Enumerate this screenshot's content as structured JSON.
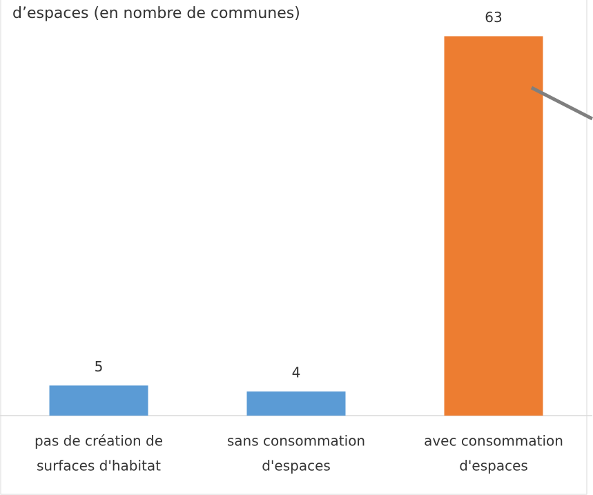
{
  "chart_data": {
    "type": "bar",
    "title": "d’espaces (en nombre de communes)",
    "categories": [
      [
        "pas de création de",
        "surfaces d'habitat"
      ],
      [
        "sans consommation",
        "d'espaces"
      ],
      [
        "avec consommation",
        "d'espaces"
      ]
    ],
    "values": [
      5,
      4,
      63
    ],
    "colors": [
      "#5b9bd5",
      "#5b9bd5",
      "#ed7d31"
    ],
    "ylim": [
      0,
      65
    ]
  }
}
